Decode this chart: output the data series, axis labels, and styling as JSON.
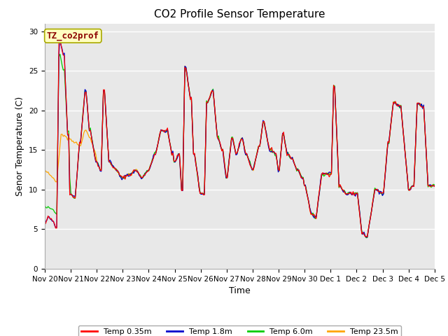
{
  "title": "CO2 Profile Sensor Temperature",
  "xlabel": "Time",
  "ylabel": "Senor Temperature (C)",
  "ylim": [
    0,
    31
  ],
  "yticks": [
    0,
    5,
    10,
    15,
    20,
    25,
    30
  ],
  "annotation": "TZ_co2prof",
  "annotation_color": "#8B0000",
  "annotation_bg": "#FFFFC0",
  "plot_bg": "#E8E8E8",
  "fig_bg": "#FFFFFF",
  "series": [
    {
      "label": "Temp 0.35m",
      "color": "#FF0000"
    },
    {
      "label": "Temp 1.8m",
      "color": "#0000CC"
    },
    {
      "label": "Temp 6.0m",
      "color": "#00CC00"
    },
    {
      "label": "Temp 23.5m",
      "color": "#FFA500"
    }
  ],
  "x_tick_labels": [
    "Nov 20",
    "Nov 21",
    "Nov 22",
    "Nov 23",
    "Nov 24",
    "Nov 25",
    "Nov 26",
    "Nov 27",
    "Nov 28",
    "Nov 29",
    "Nov 30",
    "Dec 1",
    "Dec 2",
    "Dec 3",
    "Dec 4",
    "Dec 5"
  ],
  "title_fontsize": 11,
  "axis_fontsize": 9,
  "tick_fontsize": 7.5,
  "legend_fontsize": 8
}
